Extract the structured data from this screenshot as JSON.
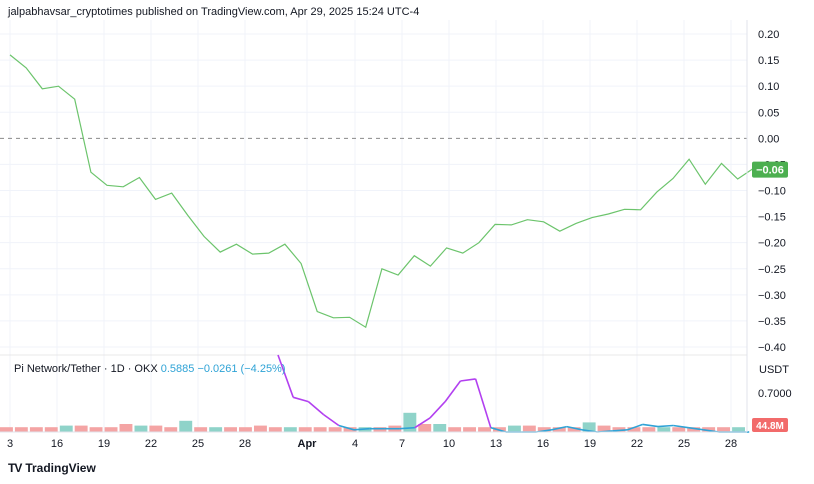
{
  "header": "jalpabhavsar_cryptotimes published on TradingView.com, Apr 29, 2025 15:24 UTC-4",
  "brand": "TradingView",
  "brand_logo": "TV",
  "legend": {
    "name": "Pi Network/Tether · 1D · OKX",
    "price": "0.5885",
    "change": "−0.0261 (−4.25%)"
  },
  "lower_pane": {
    "currency_label": "USDT",
    "price_tick": "0.7000",
    "volume_badge": "44.8M"
  },
  "current_value_badge": "−0.06",
  "colors": {
    "main_line": "#6cc46c",
    "badge_green": "#4caf50",
    "price_line_blue": "#2fa3d6",
    "price_line_purple": "#b240f0",
    "volume_up": "#8fd3c9",
    "volume_down": "#f4a4a4",
    "volume_badge": "#f26b6b"
  },
  "chart_data": [
    {
      "type": "line",
      "y_ticks": [
        "0.20",
        "0.15",
        "0.10",
        "0.05",
        "0.00",
        "−0.05",
        "−0.10",
        "−0.15",
        "−0.20",
        "−0.25",
        "−0.30",
        "−0.35",
        "−0.40"
      ],
      "ylim": [
        -0.42,
        0.22
      ],
      "zero_line": 0.0,
      "x_index_range": [
        0,
        50
      ],
      "values": [
        0.16,
        0.135,
        0.095,
        0.1,
        0.075,
        -0.065,
        -0.09,
        -0.093,
        -0.075,
        -0.117,
        -0.105,
        -0.148,
        -0.188,
        -0.218,
        -0.203,
        -0.222,
        -0.22,
        -0.203,
        -0.24,
        -0.332,
        -0.344,
        -0.343,
        -0.362,
        -0.25,
        -0.262,
        -0.225,
        -0.245,
        -0.21,
        -0.22,
        -0.2,
        -0.165,
        -0.166,
        -0.156,
        -0.16,
        -0.178,
        -0.163,
        -0.152,
        -0.145,
        -0.136,
        -0.137,
        -0.103,
        -0.077,
        -0.04,
        -0.088,
        -0.048,
        -0.078,
        -0.057,
        -0.06
      ],
      "grid": true
    },
    {
      "type": "bar",
      "series": [
        {
          "values": [
            3,
            3,
            3,
            3,
            4,
            4,
            3,
            3,
            5,
            4,
            4,
            3,
            7,
            3,
            3,
            3,
            3,
            4,
            3,
            3,
            3,
            3,
            3,
            3,
            3,
            3,
            4,
            12,
            5,
            5,
            3,
            3,
            3,
            3,
            4,
            4,
            3,
            3,
            3,
            6,
            4,
            3,
            3,
            3,
            3,
            3,
            3,
            3,
            3,
            3
          ]
        }
      ],
      "x_tick_labels": [
        "3",
        "16",
        "19",
        "22",
        "25",
        "28",
        "Apr",
        "4",
        "7",
        "10",
        "13",
        "16",
        "19",
        "22",
        "25",
        "28"
      ]
    },
    {
      "type": "line",
      "series": [
        {
          "name": "",
          "x": [
            18,
            19,
            20,
            21,
            22,
            23,
            24,
            25,
            26,
            27,
            28,
            29,
            30,
            31,
            32,
            33,
            34,
            35,
            36,
            37,
            38,
            39,
            40,
            41,
            42,
            43,
            44,
            45,
            46,
            47,
            48,
            49
          ],
          "values": [
            1.35,
            0.96,
            0.92,
            0.8,
            0.7,
            0.66,
            0.67,
            0.67,
            0.67,
            0.68,
            0.77,
            0.92,
            1.11,
            1.13,
            0.68,
            0.64,
            0.64,
            0.64,
            0.66,
            0.69,
            0.66,
            0.64,
            0.65,
            0.66,
            0.71,
            0.69,
            0.7,
            0.68,
            0.66,
            0.64,
            0.64,
            0.64
          ]
        }
      ]
    }
  ]
}
